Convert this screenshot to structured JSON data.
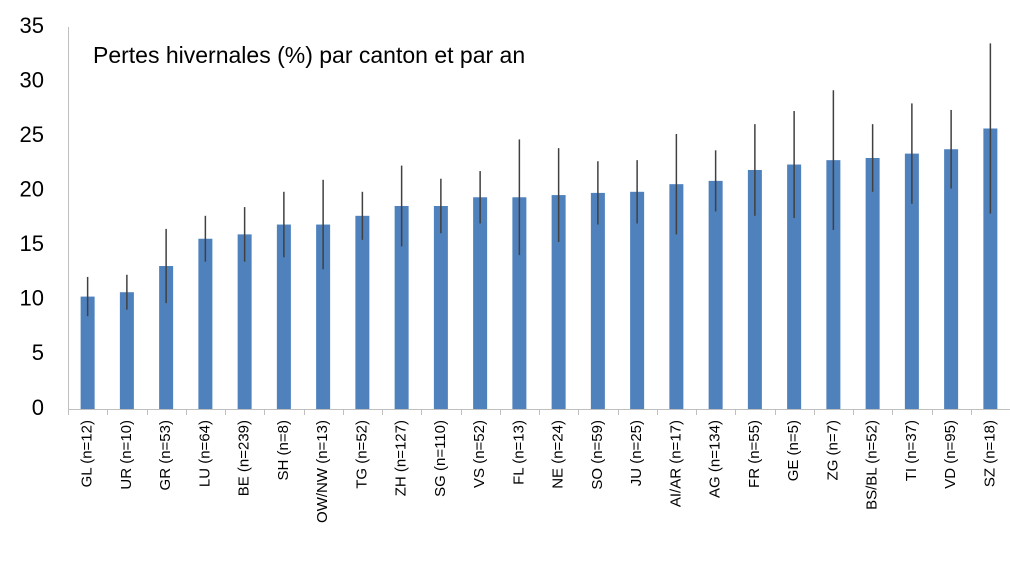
{
  "chart_data": {
    "type": "bar",
    "title": "Pertes hivernales (%) par canton et par an",
    "categories": [
      "GL (n=12)",
      "UR (n=10)",
      "GR (n=53)",
      "LU (n=64)",
      "BE (n=239)",
      "SH (n=8)",
      "OW/NW (n=13)",
      "TG (n=52)",
      "ZH (n=127)",
      "SG (n=110)",
      "VS (n=52)",
      "FL (n=13)",
      "NE (n=24)",
      "SO (n=59)",
      "JU (n=25)",
      "AI/AR (n=17)",
      "AG (n=134)",
      "FR (n=55)",
      "GE (n=5)",
      "ZG (n=7)",
      "BS/BL (n=52)",
      "TI (n=37)",
      "VD (n=95)",
      "SZ (n=18)"
    ],
    "values": [
      10.3,
      10.7,
      13.1,
      15.6,
      16.0,
      16.9,
      16.9,
      17.7,
      18.6,
      18.6,
      19.4,
      19.4,
      19.6,
      19.8,
      19.9,
      20.6,
      20.9,
      21.9,
      22.4,
      22.8,
      23.0,
      23.4,
      23.8,
      25.7
    ],
    "errors": [
      1.8,
      1.6,
      3.4,
      2.1,
      2.5,
      3.0,
      4.1,
      2.2,
      3.7,
      2.5,
      2.4,
      5.3,
      4.3,
      2.9,
      2.9,
      4.6,
      2.8,
      4.2,
      4.9,
      6.4,
      3.1,
      4.6,
      3.6,
      7.8
    ],
    "color": "#4f81bd",
    "error_color": "#404040",
    "ylim": [
      0,
      35
    ],
    "yticks": [
      0,
      5,
      10,
      15,
      20,
      25,
      30,
      35
    ],
    "grid": false
  }
}
